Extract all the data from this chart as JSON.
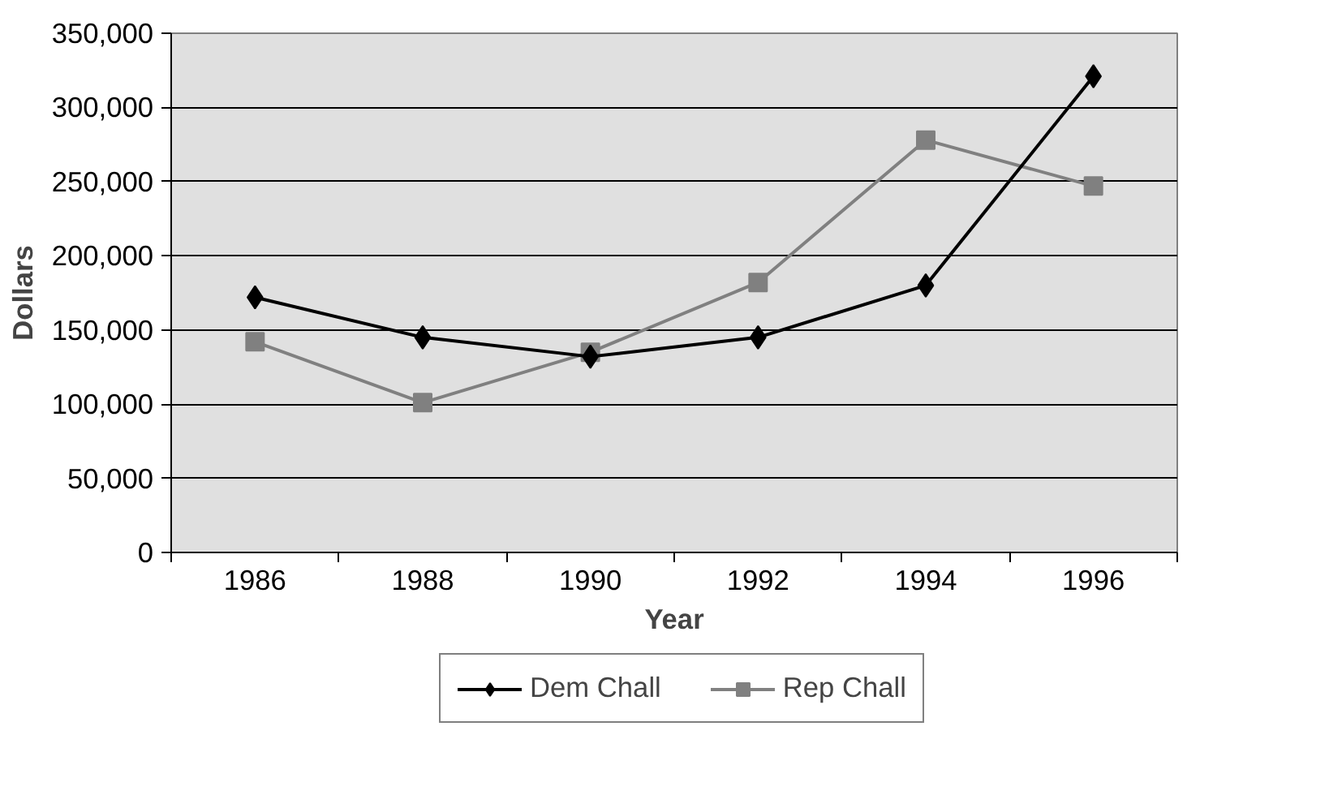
{
  "chart_data": {
    "type": "line",
    "xlabel": "Year",
    "ylabel": "Dollars",
    "categories": [
      "1986",
      "1988",
      "1990",
      "1992",
      "1994",
      "1996"
    ],
    "series": [
      {
        "name": "Dem Chall",
        "color": "#000000",
        "marker": "diamond",
        "values": [
          172000,
          145000,
          132000,
          145000,
          180000,
          321000
        ]
      },
      {
        "name": "Rep Chall",
        "color": "#808080",
        "marker": "square",
        "values": [
          142000,
          101000,
          135000,
          182000,
          278000,
          247000
        ]
      }
    ],
    "ylim": [
      0,
      350000
    ],
    "yticks": [
      0,
      {
        "value": 50000,
        "label": "50,000"
      },
      {
        "value": 100000,
        "label": "100,000"
      },
      {
        "value": 150000,
        "label": "150,000"
      },
      {
        "value": 200000,
        "label": "200,000"
      },
      {
        "value": 250000,
        "label": "250,000"
      },
      {
        "value": 300000,
        "label": "300,000"
      },
      {
        "value": 350000,
        "label": "350,000"
      }
    ],
    "grid": "y",
    "legend": "bottom",
    "line_style": "solid"
  }
}
